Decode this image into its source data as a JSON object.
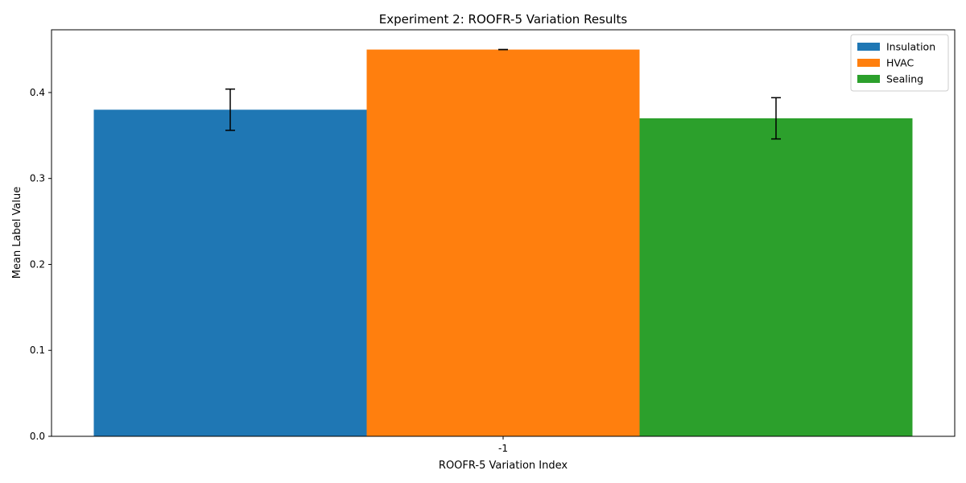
{
  "chart_data": {
    "type": "bar",
    "title": "Experiment 2: ROOFR-5 Variation Results",
    "xlabel": "ROOFR-5 Variation Index",
    "ylabel": "Mean Label Value",
    "categories": [
      "-1"
    ],
    "series": [
      {
        "name": "Insulation",
        "values": [
          0.38
        ],
        "error": [
          0.024
        ],
        "color": "#1f77b4"
      },
      {
        "name": "HVAC",
        "values": [
          0.45
        ],
        "error": [
          0.0
        ],
        "color": "#ff7f0e"
      },
      {
        "name": "Sealing",
        "values": [
          0.37
        ],
        "error": [
          0.024
        ],
        "color": "#2ca02c"
      }
    ],
    "ylim": [
      0,
      0.473
    ],
    "yticks": [
      0.0,
      0.1,
      0.2,
      0.3,
      0.4
    ],
    "ytick_labels": [
      "0.0",
      "0.1",
      "0.2",
      "0.3",
      "0.4"
    ],
    "grid": false,
    "legend": "top-right"
  }
}
